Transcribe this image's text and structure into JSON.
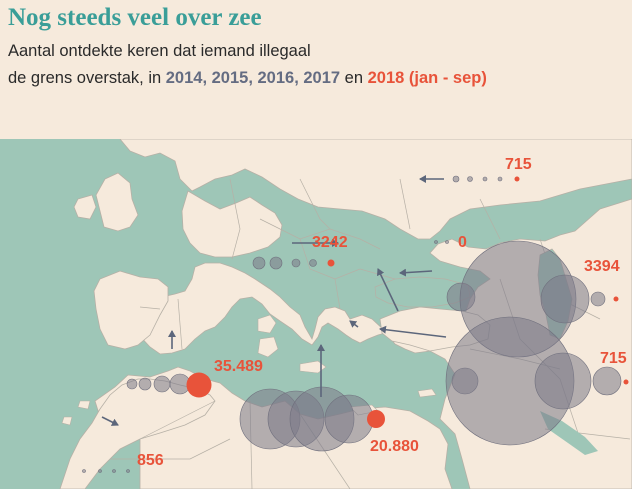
{
  "title": "Nog steeds veel over zee",
  "subtitle": {
    "line1": "Aantal ontdekte keren dat iemand illegaal",
    "line2_start": "de grens overstak, in ",
    "years_grey": "2014, 2015, 2016, 2017",
    "conj": " en ",
    "year_red": "2018",
    "period": " (jan - sep)"
  },
  "colors": {
    "background": "#f6eadc",
    "sea": "#9ec6b7",
    "land": "#f6eadc",
    "border": "#b6b0a6",
    "title": "#3a9e98",
    "grey_years": "#646c82",
    "accent_2018": "#e8533a",
    "bubble_grey": "#7b7a88",
    "arrow": "#5c667b"
  },
  "labels": {
    "east_border": "715",
    "western_balkan": "3242",
    "black_sea": "0",
    "eastern_land": "3394",
    "western_med": "35.489",
    "central_med": "20.880",
    "eastern_med": "715",
    "west_africa": "856"
  }
}
